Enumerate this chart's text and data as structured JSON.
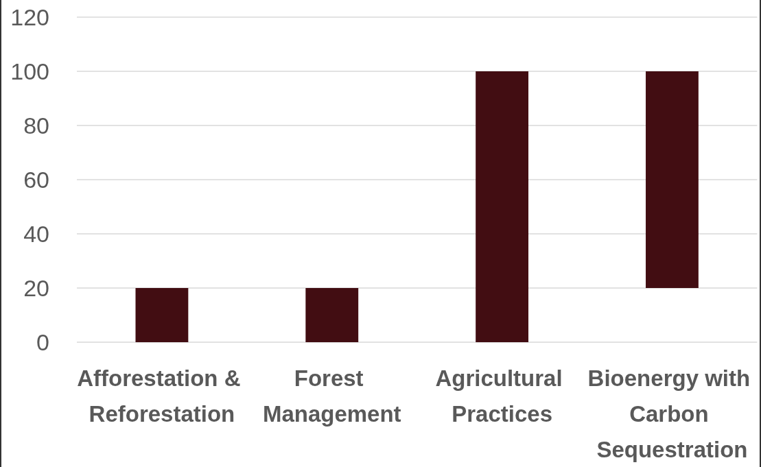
{
  "chart_data": {
    "type": "bar",
    "categories": [
      "Afforestation & Reforestation",
      "Forest Management",
      "Agricultural Practices",
      "Bioenergy with Carbon Sequestration"
    ],
    "values": [
      20,
      20,
      100,
      80
    ],
    "base": [
      0,
      0,
      0,
      20
    ],
    "color": "#420d12",
    "ylim": [
      0,
      120
    ],
    "yticks": [
      0,
      20,
      40,
      60,
      80,
      100,
      120
    ],
    "grid": "y"
  }
}
